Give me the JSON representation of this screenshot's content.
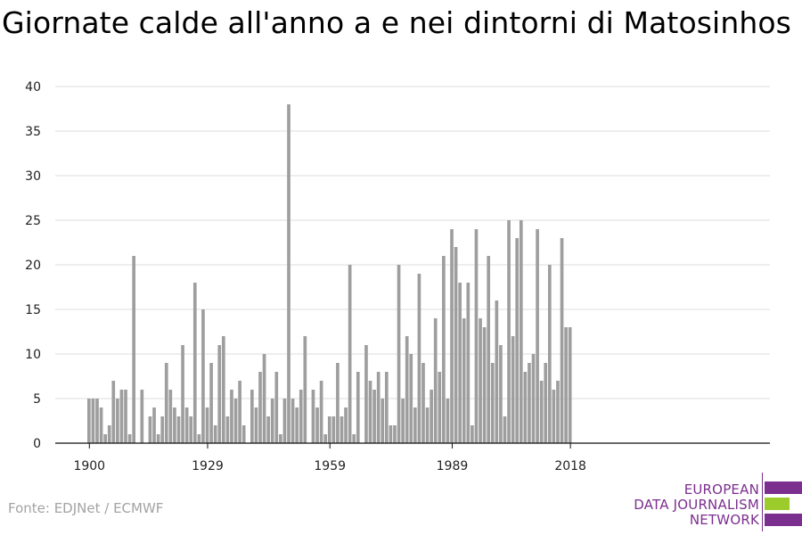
{
  "title": "Giornate calde all'anno a e nei dintorni di Matosinhos",
  "source": "Fonte: EDJNet / ECMWF",
  "logo": {
    "line1": "EUROPEAN",
    "line2": "DATA JOURNALISM",
    "line3": "NETWORK",
    "colors": [
      "#7b2f8e",
      "#9ccc2c",
      "#7b2f8e"
    ]
  },
  "chart_data": {
    "type": "bar",
    "title": "Giornate calde all'anno a e nei dintorni di Matosinhos",
    "xlabel": "",
    "ylabel": "",
    "bar_color": "#9e9e9e",
    "grid": true,
    "ylim": [
      0,
      40
    ],
    "yticks": [
      "0",
      "5",
      "10",
      "15",
      "20",
      "25",
      "30",
      "35",
      "40"
    ],
    "xtick_years": [
      1900,
      1929,
      1959,
      1989,
      2018
    ],
    "xtick_labels": [
      "1900",
      "1929",
      "1959",
      "1989",
      "2018"
    ],
    "years": [
      1900,
      1901,
      1902,
      1903,
      1904,
      1905,
      1906,
      1907,
      1908,
      1909,
      1910,
      1911,
      1912,
      1913,
      1914,
      1915,
      1916,
      1917,
      1918,
      1919,
      1920,
      1921,
      1922,
      1923,
      1924,
      1925,
      1926,
      1927,
      1928,
      1929,
      1930,
      1931,
      1932,
      1933,
      1934,
      1935,
      1936,
      1937,
      1938,
      1939,
      1940,
      1941,
      1942,
      1943,
      1944,
      1945,
      1946,
      1947,
      1948,
      1949,
      1950,
      1951,
      1952,
      1953,
      1954,
      1955,
      1956,
      1957,
      1958,
      1959,
      1960,
      1961,
      1962,
      1963,
      1964,
      1965,
      1966,
      1967,
      1968,
      1969,
      1970,
      1971,
      1972,
      1973,
      1974,
      1975,
      1976,
      1977,
      1978,
      1979,
      1980,
      1981,
      1982,
      1983,
      1984,
      1985,
      1986,
      1987,
      1988,
      1989,
      1990,
      1991,
      1992,
      1993,
      1994,
      1995,
      1996,
      1997,
      1998,
      1999,
      2000,
      2001,
      2002,
      2003,
      2004,
      2005,
      2006,
      2007,
      2008,
      2009,
      2010,
      2011,
      2012,
      2013,
      2014,
      2015,
      2016,
      2017,
      2018,
      2019
    ],
    "values": [
      5,
      5,
      5,
      4,
      1,
      2,
      7,
      5,
      6,
      6,
      1,
      21,
      0,
      6,
      0,
      3,
      4,
      1,
      3,
      9,
      6,
      4,
      3,
      11,
      4,
      3,
      18,
      1,
      15,
      4,
      9,
      2,
      11,
      12,
      3,
      6,
      5,
      7,
      2,
      0,
      6,
      4,
      8,
      10,
      3,
      5,
      8,
      1,
      5,
      38,
      5,
      4,
      6,
      12,
      0,
      6,
      4,
      7,
      1,
      3,
      3,
      9,
      3,
      4,
      20,
      1,
      8,
      0,
      11,
      7,
      6,
      8,
      5,
      8,
      2,
      2,
      20,
      5,
      12,
      10,
      4,
      19,
      9,
      4,
      6,
      14,
      8,
      21,
      5,
      24,
      22,
      18,
      14,
      18,
      2,
      24,
      14,
      13,
      21,
      9,
      16,
      11,
      3,
      25,
      12,
      23,
      25,
      8,
      9,
      10,
      24,
      7,
      9,
      20,
      6,
      7,
      23,
      13,
      13,
      0
    ]
  }
}
